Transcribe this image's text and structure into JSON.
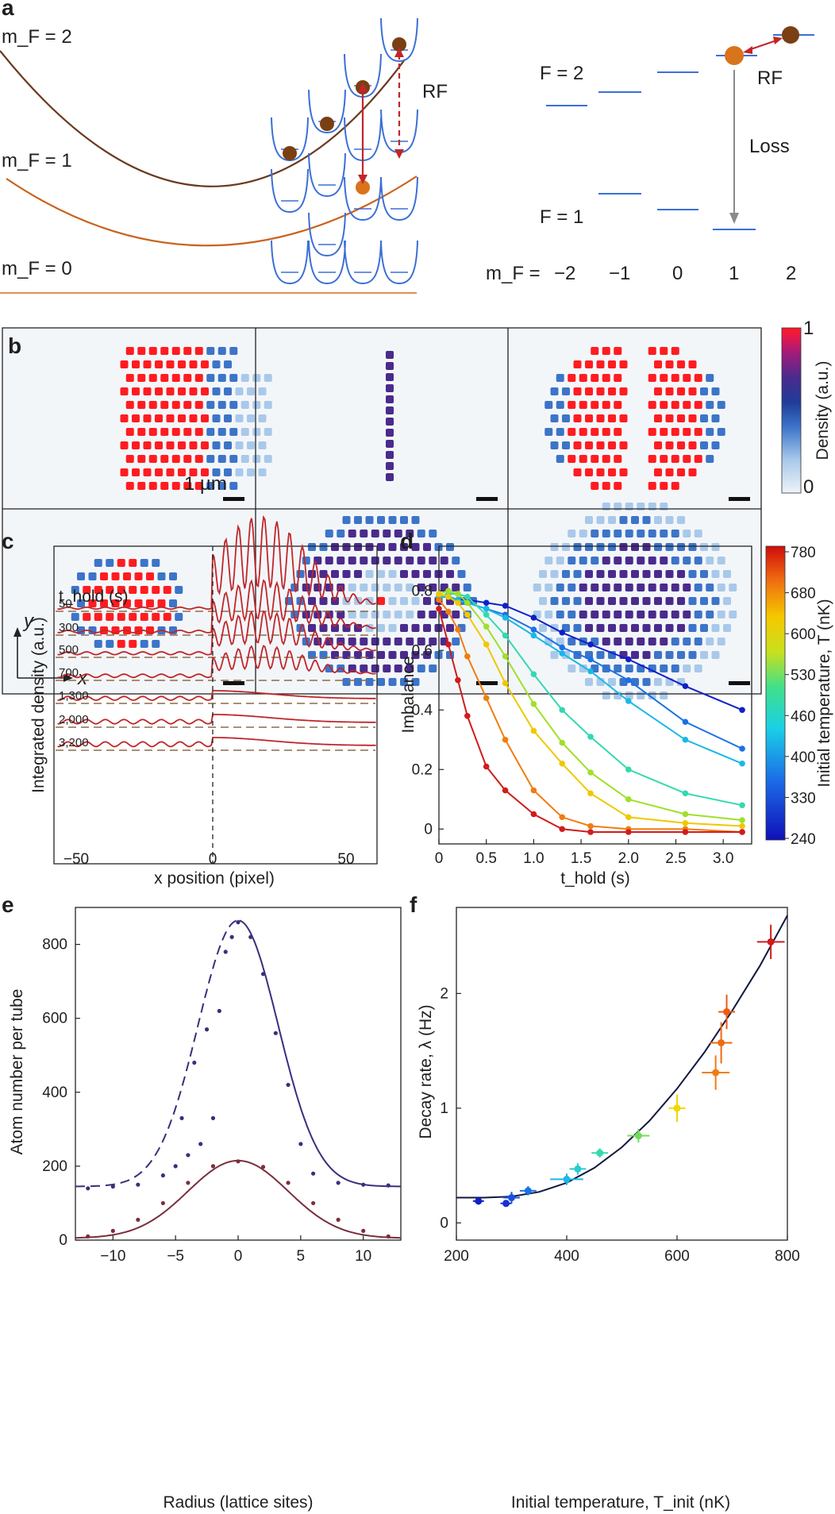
{
  "panel_labels": {
    "a": "a",
    "b": "b",
    "c": "c",
    "d": "d",
    "e": "e",
    "f": "f"
  },
  "panel_a": {
    "mf_left": [
      "m_F = 2",
      "m_F = 1",
      "m_F = 0"
    ],
    "rf_left": "RF",
    "F2": "F = 2",
    "F1": "F = 1",
    "rf_right": "RF",
    "loss": "Loss",
    "mf_axis_label": "m_F =",
    "mf_values": [
      "−2",
      "−1",
      "0",
      "1",
      "2"
    ],
    "colors": {
      "potential_mf2": "#6b3a1f",
      "potential_mf1": "#c8631c",
      "potential_mf0": "#d9924f",
      "lattice": "#3b6fd6",
      "atom": "#7a3f12",
      "atom_orange": "#d9731c",
      "arrow": "#c0262a",
      "loss_arrow": "#8a8a8a"
    }
  },
  "panel_b": {
    "scalebar_label": "1 µm",
    "axis_y": "y",
    "axis_x": "x",
    "colorbar_max": "1",
    "colorbar_min": "0",
    "colorbar_label": "Density (a.u.)",
    "image_patterns": [
      "stripe",
      "line",
      "two-stripes",
      "disc",
      "ring",
      "disordered-disc"
    ],
    "colormap": [
      "#eef3f8",
      "#a9c9ea",
      "#3c74c8",
      "#1f3c98",
      "#4a2b8c",
      "#a21c7a",
      "#e8174a",
      "#ff1c20"
    ]
  },
  "panel_c": {
    "ylabel": "Integrated density (a.u.)",
    "xlabel": "x position (pixel)",
    "t_hold_label": "t_hold (s)",
    "t_hold_values": [
      "50",
      "300",
      "500",
      "700",
      "1,300",
      "2,000",
      "3,200"
    ],
    "x_ticks": [
      "−50",
      "0",
      "50"
    ],
    "colors": {
      "profile": "#c0262a",
      "baseline": "#8c6b4a"
    }
  },
  "panel_d": {
    "ylabel": "Imbalance",
    "xlabel": "t_hold (s)",
    "x_ticks": [
      "0",
      "0.5",
      "1.0",
      "1.5",
      "2.0",
      "2.5",
      "3.0"
    ],
    "y_ticks": [
      "0",
      "0.2",
      "0.4",
      "0.6",
      "0.8"
    ],
    "colorbar_ticks": [
      "780",
      "680",
      "600",
      "530",
      "460",
      "400",
      "330",
      "240"
    ],
    "colorbar_label": "Initial temperature, T (nK)"
  },
  "panel_e": {
    "ylabel": "Atom number per tube",
    "xlabel": "Radius (lattice sites)",
    "x_ticks": [
      "−10",
      "−5",
      "0",
      "5",
      "10"
    ],
    "y_ticks": [
      "0",
      "200",
      "400",
      "600",
      "800"
    ]
  },
  "panel_f": {
    "ylabel": "Decay rate, λ (Hz)",
    "xlabel": "Initial temperature, T_init (nK)",
    "x_ticks": [
      "200",
      "400",
      "600",
      "800"
    ],
    "y_ticks": [
      "0",
      "1",
      "2"
    ]
  },
  "chart_data": [
    {
      "id": "d",
      "type": "line",
      "title": "",
      "xlabel": "t_hold (s)",
      "ylabel": "Imbalance",
      "xlim": [
        0,
        3.3
      ],
      "ylim": [
        -0.05,
        0.95
      ],
      "series": [
        {
          "name": "240 nK",
          "color": "#1020c8",
          "x": [
            0,
            0.1,
            0.2,
            0.3,
            0.5,
            0.7,
            1.0,
            1.3,
            1.6,
            2.0,
            2.6,
            3.2
          ],
          "values": [
            0.78,
            0.78,
            0.77,
            0.77,
            0.76,
            0.75,
            0.71,
            0.66,
            0.62,
            0.57,
            0.48,
            0.4
          ]
        },
        {
          "name": "330 nK",
          "color": "#1b70e6",
          "x": [
            0,
            0.1,
            0.2,
            0.3,
            0.5,
            0.7,
            1.0,
            1.3,
            1.6,
            2.0,
            2.6,
            3.2
          ],
          "values": [
            0.78,
            0.78,
            0.77,
            0.76,
            0.74,
            0.72,
            0.67,
            0.61,
            0.57,
            0.5,
            0.36,
            0.27
          ]
        },
        {
          "name": "400 nK",
          "color": "#1ab8e6",
          "x": [
            0,
            0.1,
            0.2,
            0.3,
            0.5,
            0.7,
            1.0,
            1.3,
            1.6,
            2.0,
            2.6,
            3.2
          ],
          "values": [
            0.78,
            0.78,
            0.77,
            0.76,
            0.74,
            0.71,
            0.65,
            0.59,
            0.53,
            0.43,
            0.3,
            0.22
          ]
        },
        {
          "name": "460 nK",
          "color": "#33d9b0",
          "x": [
            0,
            0.1,
            0.2,
            0.3,
            0.5,
            0.7,
            1.0,
            1.3,
            1.6,
            2.0,
            2.6,
            3.2
          ],
          "values": [
            0.78,
            0.79,
            0.79,
            0.78,
            0.72,
            0.65,
            0.52,
            0.4,
            0.31,
            0.2,
            0.12,
            0.08
          ]
        },
        {
          "name": "530 nK",
          "color": "#9fe02a",
          "x": [
            0,
            0.1,
            0.2,
            0.3,
            0.5,
            0.7,
            1.0,
            1.3,
            1.6,
            2.0,
            2.6,
            3.2
          ],
          "values": [
            0.79,
            0.8,
            0.79,
            0.76,
            0.68,
            0.58,
            0.42,
            0.29,
            0.19,
            0.1,
            0.05,
            0.03
          ]
        },
        {
          "name": "600 nK",
          "color": "#f0c800",
          "x": [
            0,
            0.1,
            0.2,
            0.3,
            0.5,
            0.7,
            1.0,
            1.3,
            1.6,
            2.0,
            2.6,
            3.2
          ],
          "values": [
            0.79,
            0.78,
            0.76,
            0.72,
            0.62,
            0.49,
            0.33,
            0.22,
            0.12,
            0.04,
            0.02,
            0.01
          ]
        },
        {
          "name": "680 nK",
          "color": "#f07d10",
          "x": [
            0,
            0.1,
            0.2,
            0.3,
            0.5,
            0.7,
            1.0,
            1.3,
            1.6,
            2.0,
            2.6,
            3.2
          ],
          "values": [
            0.77,
            0.73,
            0.67,
            0.58,
            0.44,
            0.3,
            0.13,
            0.04,
            0.01,
            0.0,
            0.0,
            -0.01
          ]
        },
        {
          "name": "780 nK",
          "color": "#d01c1c",
          "x": [
            0,
            0.1,
            0.2,
            0.3,
            0.5,
            0.7,
            1.0,
            1.3,
            1.6,
            2.0,
            2.6,
            3.2
          ],
          "values": [
            0.74,
            0.62,
            0.5,
            0.38,
            0.21,
            0.13,
            0.05,
            0.0,
            -0.01,
            -0.01,
            -0.01,
            -0.01
          ]
        }
      ]
    },
    {
      "id": "e",
      "type": "scatter",
      "title": "",
      "xlabel": "Radius (lattice sites)",
      "ylabel": "Atom number per tube",
      "xlim": [
        -13,
        13
      ],
      "ylim": [
        0,
        900
      ],
      "series": [
        {
          "name": "upper fit (dashed left / solid right)",
          "color": "#3a2f7a",
          "kind": "gaussian-line",
          "amplitude": 720,
          "offset": 145,
          "sigma": 3.2
        },
        {
          "name": "upper data",
          "color": "#3a2f7a",
          "kind": "points",
          "x": [
            -12,
            -10,
            -8,
            -6,
            -5,
            -4.5,
            -4,
            -3.5,
            -3,
            -2.5,
            -2,
            -1.5,
            -1,
            -0.5,
            0,
            1,
            2,
            3,
            4,
            5,
            6,
            8,
            10,
            12
          ],
          "values": [
            140,
            145,
            150,
            175,
            200,
            330,
            230,
            480,
            260,
            570,
            330,
            620,
            780,
            820,
            860,
            820,
            720,
            560,
            420,
            260,
            180,
            155,
            150,
            148
          ]
        },
        {
          "name": "lower fit",
          "color": "#7a2f3c",
          "kind": "gaussian-line",
          "amplitude": 210,
          "offset": 5,
          "sigma": 4.0
        },
        {
          "name": "lower data",
          "color": "#7a2f3c",
          "kind": "points",
          "x": [
            -12,
            -10,
            -8,
            -6,
            -4,
            -2,
            0,
            2,
            4,
            6,
            8,
            10,
            12
          ],
          "values": [
            10,
            25,
            55,
            100,
            155,
            200,
            213,
            198,
            155,
            100,
            55,
            25,
            10
          ]
        }
      ]
    },
    {
      "id": "f",
      "type": "scatter",
      "title": "",
      "xlabel": "Initial temperature, T_init (nK)",
      "ylabel": "Decay rate, λ (Hz)",
      "xlim": [
        200,
        800
      ],
      "ylim": [
        -0.15,
        2.75
      ],
      "series": [
        {
          "name": "data",
          "x": [
            240,
            290,
            300,
            330,
            400,
            420,
            460,
            530,
            600,
            670,
            680,
            690,
            770
          ],
          "values": [
            0.19,
            0.17,
            0.22,
            0.28,
            0.38,
            0.47,
            0.61,
            0.76,
            1.0,
            1.31,
            1.57,
            1.84,
            2.45
          ],
          "x_err": [
            10,
            10,
            15,
            15,
            30,
            15,
            15,
            20,
            15,
            25,
            20,
            15,
            25
          ],
          "y_err": [
            0.03,
            0.03,
            0.05,
            0.04,
            0.05,
            0.05,
            0.04,
            0.06,
            0.12,
            0.15,
            0.18,
            0.15,
            0.15
          ],
          "colors": [
            "#1020c8",
            "#1830d0",
            "#1b50dc",
            "#1b70e6",
            "#1ab8e6",
            "#26ccd0",
            "#33d9b0",
            "#70dc5a",
            "#f0d800",
            "#f07d10",
            "#f06a10",
            "#f05a10",
            "#d01c1c"
          ]
        },
        {
          "name": "fit",
          "color": "#101840",
          "kind": "curve",
          "x": [
            200,
            250,
            300,
            350,
            400,
            450,
            500,
            550,
            600,
            650,
            700,
            750,
            800
          ],
          "values": [
            0.22,
            0.22,
            0.23,
            0.27,
            0.35,
            0.48,
            0.66,
            0.89,
            1.17,
            1.49,
            1.85,
            2.24,
            2.68
          ]
        }
      ]
    }
  ]
}
